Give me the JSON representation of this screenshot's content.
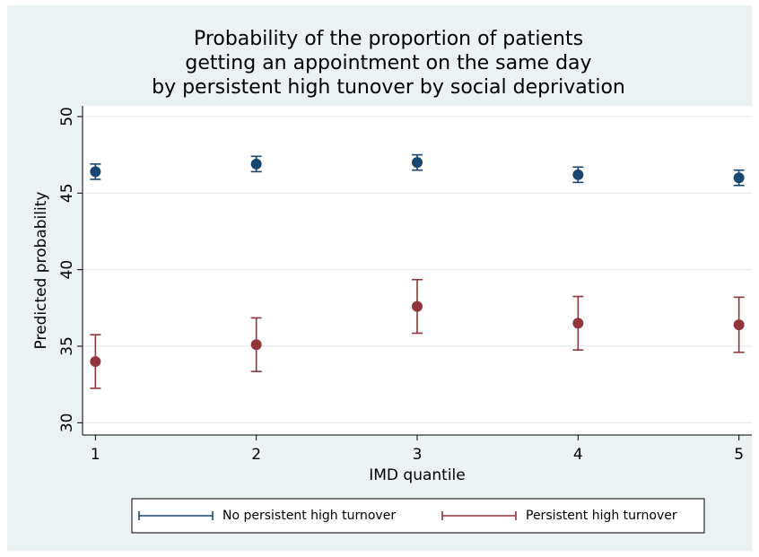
{
  "chart_data": {
    "type": "errorbar",
    "title": [
      "Probability of the proportion of patients",
      "getting an appointment on the same day",
      "by persistent high tunover by social deprivation"
    ],
    "x_label": "IMD quantile",
    "y_label": "Predicted probability",
    "x": [
      1,
      2,
      3,
      4,
      5
    ],
    "series": [
      {
        "name": "No persistent high turnover",
        "color": "#1a476f",
        "values": [
          46.4,
          46.9,
          47.0,
          46.2,
          46.0
        ],
        "errors": [
          0.5,
          0.5,
          0.5,
          0.5,
          0.5
        ]
      },
      {
        "name": "Persistent high turnover",
        "color": "#90353b",
        "values": [
          34.0,
          35.1,
          37.6,
          36.5,
          36.4
        ],
        "errors": [
          1.75,
          1.75,
          1.75,
          1.75,
          1.8
        ]
      }
    ],
    "xlim": [
      0.92,
      5.08
    ],
    "ylim": [
      29.2,
      50.7
    ],
    "xticks": [
      1,
      2,
      3,
      4,
      5
    ],
    "yticks": [
      30,
      35,
      40,
      45,
      50
    ],
    "grid": true,
    "legend": "bottom"
  }
}
